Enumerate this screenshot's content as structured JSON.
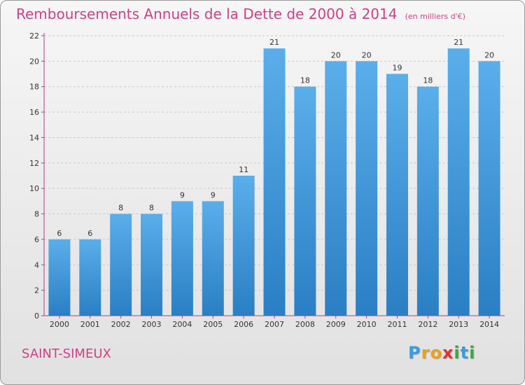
{
  "title": "Remboursements Annuels de la Dette de 2000 à 2014",
  "subtitle": "(en milliers d'€)",
  "commune": "SAINT-SIMEUX",
  "brand": {
    "letters": [
      "P",
      "r",
      "o",
      "x",
      "i",
      "t",
      "i"
    ],
    "colors": [
      "#3b9be0",
      "#e9a21a",
      "#e9a21a",
      "#e2322e",
      "#3ca83c",
      "#3b9be0",
      "#3ca83c"
    ]
  },
  "chart_data": {
    "type": "bar",
    "categories": [
      "2000",
      "2001",
      "2002",
      "2003",
      "2004",
      "2005",
      "2006",
      "2007",
      "2008",
      "2009",
      "2010",
      "2011",
      "2012",
      "2013",
      "2014"
    ],
    "values": [
      6,
      6,
      8,
      8,
      9,
      9,
      11,
      21,
      18,
      20,
      20,
      19,
      18,
      21,
      20
    ],
    "ylim": [
      0,
      22
    ],
    "yticks": [
      0,
      2,
      4,
      6,
      8,
      10,
      12,
      14,
      16,
      18,
      20,
      22
    ],
    "grid": true,
    "bar_color": "#3d96dc",
    "grid_color": "#c9c9c9",
    "axis_color": "#b04080"
  }
}
